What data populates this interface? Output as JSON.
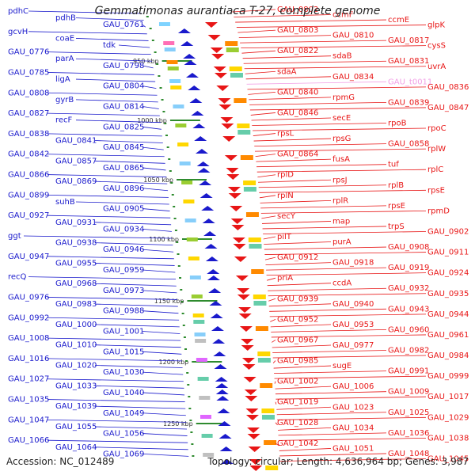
{
  "title": "Gemmatimonas aurantiaca T-27, complete genome",
  "accession": "Accession: NC_012489",
  "stats": "Topology: circular; Length: 4,636,964 bp; Genes: 3,987",
  "colors": {
    "left": "#1a1acc",
    "right": "#e81616",
    "right_pale": "#f2a0e6",
    "backbone": "#8a8a8a",
    "tick": "#2e8b2e"
  },
  "kbp_ticks": [
    "950 kbp",
    "1000 kbp",
    "1050 kbp",
    "1100 kbp",
    "1150 kbp",
    "1200 kbp",
    "1250 kbp"
  ],
  "left_labels": [
    "pdhC",
    "pdhB",
    "GAU_0761",
    "gcvH",
    "coaE",
    "tdk",
    "GAU_0776",
    "parA",
    "GAU_0798",
    "GAU_0785",
    "ligA",
    "GAU_0804",
    "GAU_0808",
    "gyrB",
    "GAU_0814",
    "GAU_0827",
    "recF",
    "GAU_0825",
    "GAU_0838",
    "GAU_0841",
    "GAU_0845",
    "GAU_0842",
    "GAU_0857",
    "GAU_0865",
    "GAU_0866",
    "GAU_0869",
    "GAU_0896",
    "GAU_0899",
    "suhB",
    "GAU_0905",
    "GAU_0927",
    "GAU_0931",
    "GAU_0934",
    "ggt",
    "GAU_0938",
    "GAU_0946",
    "GAU_0947",
    "GAU_0955",
    "GAU_0959",
    "recQ",
    "GAU_0968",
    "GAU_0973",
    "GAU_0976",
    "GAU_0983",
    "GAU_0988",
    "GAU_0992",
    "GAU_1000",
    "GAU_1001",
    "GAU_1008",
    "GAU_1010",
    "GAU_1015",
    "GAU_1016",
    "GAU_1020",
    "GAU_1030",
    "GAU_1027",
    "GAU_1033",
    "GAU_1040",
    "GAU_1035",
    "GAU_1039",
    "GAU_1049",
    "GAU_1047",
    "GAU_1055",
    "GAU_1056",
    "GAU_1066",
    "GAU_1064",
    "GAU_1069"
  ],
  "right_labels": [
    "GAU_0802",
    "ccmF",
    "ccmE",
    "glpK",
    "GAU_0803",
    "GAU_0810",
    "GAU_0817",
    "cysS",
    "GAU_0822",
    "sdaB",
    "GAU_0831",
    "uvrA",
    "sdaA",
    "GAU_0834",
    "GAU_t0011",
    "GAU_0836",
    "GAU_0840",
    "rpmG",
    "GAU_0839",
    "GAU_0847",
    "GAU_0846",
    "secE",
    "rpoB",
    "rpoC",
    "rpsL",
    "rpsG",
    "GAU_0858",
    "rplW",
    "GAU_0864",
    "fusA",
    "tuf",
    "rplC",
    "rplD",
    "rpsJ",
    "rplB",
    "rpsE",
    "rplN",
    "rplR",
    "rpsE",
    "rpmD",
    "secY",
    "map",
    "trpS",
    "GAU_0902",
    "pilT",
    "purA",
    "GAU_0908",
    "GAU_0911",
    "GAU_0912",
    "GAU_0918",
    "GAU_0919",
    "GAU_0924",
    "priA",
    "ccdA",
    "GAU_0932",
    "GAU_0935",
    "GAU_0939",
    "GAU_0940",
    "GAU_0943",
    "GAU_0944",
    "GAU_0952",
    "GAU_0953",
    "GAU_0960",
    "GAU_0961",
    "GAU_0967",
    "GAU_0977",
    "GAU_0982",
    "GAU_0984",
    "GAU_0985",
    "sugE",
    "GAU_0991",
    "GAU_0999",
    "GAU_1002",
    "GAU_1006",
    "GAU_1009",
    "GAU_1017",
    "GAU_1019",
    "GAU_1023",
    "GAU_1025",
    "GAU_1029",
    "GAU_1028",
    "GAU_1034",
    "GAU_1036",
    "GAU_1038",
    "GAU_1042",
    "GAU_1051",
    "GAU_1048",
    "GAU_1045"
  ]
}
